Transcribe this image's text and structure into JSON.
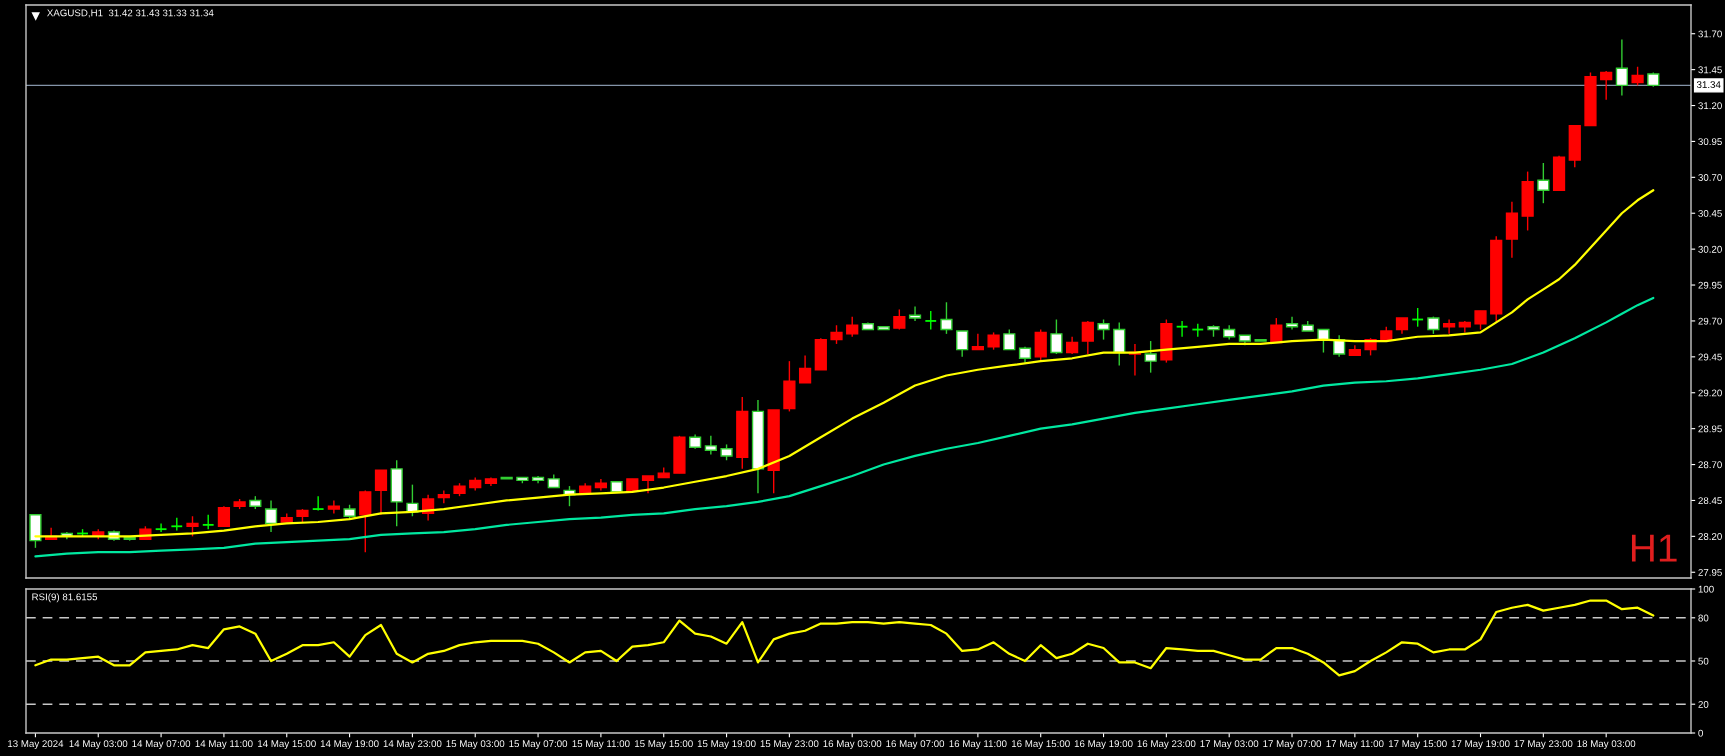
{
  "chart_data": [
    {
      "type": "candlestick",
      "title": "XAGUSD,H1  31.42 31.43 31.33 31.34",
      "x": [
        "2024-05-13T23:00",
        "2024-05-14T00:00",
        "2024-05-14T01:00",
        "2024-05-14T02:00",
        "2024-05-14T03:00",
        "2024-05-14T04:00",
        "2024-05-14T05:00",
        "2024-05-14T06:00",
        "2024-05-14T07:00",
        "2024-05-14T08:00",
        "2024-05-14T09:00",
        "2024-05-14T10:00",
        "2024-05-14T11:00",
        "2024-05-14T12:00",
        "2024-05-14T13:00",
        "2024-05-14T14:00",
        "2024-05-14T15:00",
        "2024-05-14T16:00",
        "2024-05-14T17:00",
        "2024-05-14T18:00",
        "2024-05-14T19:00",
        "2024-05-14T20:00",
        "2024-05-14T21:00",
        "2024-05-14T22:00",
        "2024-05-14T23:00",
        "2024-05-15T00:00",
        "2024-05-15T01:00",
        "2024-05-15T02:00",
        "2024-05-15T03:00",
        "2024-05-15T04:00",
        "2024-05-15T05:00",
        "2024-05-15T06:00",
        "2024-05-15T07:00",
        "2024-05-15T08:00",
        "2024-05-15T09:00",
        "2024-05-15T10:00",
        "2024-05-15T11:00",
        "2024-05-15T12:00",
        "2024-05-15T13:00",
        "2024-05-15T14:00",
        "2024-05-15T15:00",
        "2024-05-15T16:00",
        "2024-05-15T17:00",
        "2024-05-15T18:00",
        "2024-05-15T19:00",
        "2024-05-15T20:00",
        "2024-05-15T21:00",
        "2024-05-15T22:00",
        "2024-05-15T23:00",
        "2024-05-16T00:00",
        "2024-05-16T01:00",
        "2024-05-16T02:00",
        "2024-05-16T03:00",
        "2024-05-16T04:00",
        "2024-05-16T05:00",
        "2024-05-16T06:00",
        "2024-05-16T07:00",
        "2024-05-16T08:00",
        "2024-05-16T09:00",
        "2024-05-16T10:00",
        "2024-05-16T11:00",
        "2024-05-16T12:00",
        "2024-05-16T13:00",
        "2024-05-16T14:00",
        "2024-05-16T15:00",
        "2024-05-16T16:00",
        "2024-05-16T17:00",
        "2024-05-16T18:00",
        "2024-05-16T19:00",
        "2024-05-16T20:00",
        "2024-05-16T21:00",
        "2024-05-16T22:00",
        "2024-05-16T23:00",
        "2024-05-17T00:00",
        "2024-05-17T01:00",
        "2024-05-17T02:00",
        "2024-05-17T03:00",
        "2024-05-17T04:00",
        "2024-05-17T05:00",
        "2024-05-17T06:00",
        "2024-05-17T07:00",
        "2024-05-17T08:00",
        "2024-05-17T09:00",
        "2024-05-17T10:00",
        "2024-05-17T11:00",
        "2024-05-17T12:00",
        "2024-05-17T13:00",
        "2024-05-17T14:00",
        "2024-05-17T15:00",
        "2024-05-17T16:00",
        "2024-05-17T17:00",
        "2024-05-17T18:00",
        "2024-05-17T19:00",
        "2024-05-17T20:00",
        "2024-05-17T21:00",
        "2024-05-17T22:00",
        "2024-05-17T23:00",
        "2024-05-18T00:00",
        "2024-05-18T01:00",
        "2024-05-18T02:00",
        "2024-05-18T03:00",
        "2024-05-18T04:00",
        "2024-05-18T05:00",
        "2024-05-18T06:00"
      ],
      "ohlc": [
        [
          28.35,
          28.35,
          28.12,
          28.17
        ],
        [
          28.18,
          28.26,
          28.18,
          28.2
        ],
        [
          28.22,
          28.23,
          28.18,
          28.2
        ],
        [
          28.22,
          28.25,
          28.2,
          28.22
        ],
        [
          28.2,
          28.25,
          28.18,
          28.23
        ],
        [
          28.23,
          28.24,
          28.17,
          28.18
        ],
        [
          28.19,
          28.19,
          28.17,
          28.18
        ],
        [
          28.18,
          28.27,
          28.18,
          28.25
        ],
        [
          28.25,
          28.29,
          28.23,
          28.25
        ],
        [
          28.27,
          28.33,
          28.24,
          28.27
        ],
        [
          28.27,
          28.34,
          28.2,
          28.29
        ],
        [
          28.28,
          28.35,
          28.25,
          28.28
        ],
        [
          28.27,
          28.41,
          28.27,
          28.4
        ],
        [
          28.41,
          28.46,
          28.39,
          28.44
        ],
        [
          28.45,
          28.48,
          28.39,
          28.41
        ],
        [
          28.39,
          28.45,
          28.23,
          28.29
        ],
        [
          28.3,
          28.36,
          28.3,
          28.33
        ],
        [
          28.34,
          28.39,
          28.3,
          28.38
        ],
        [
          28.39,
          28.48,
          28.38,
          28.39
        ],
        [
          28.39,
          28.45,
          28.36,
          28.41
        ],
        [
          28.39,
          28.42,
          28.32,
          28.34
        ],
        [
          28.35,
          28.52,
          28.09,
          28.51
        ],
        [
          28.52,
          28.66,
          28.35,
          28.66
        ],
        [
          28.67,
          28.73,
          28.27,
          28.44
        ],
        [
          28.43,
          28.56,
          28.34,
          28.37
        ],
        [
          28.36,
          28.49,
          28.31,
          28.46
        ],
        [
          28.47,
          28.52,
          28.43,
          28.49
        ],
        [
          28.5,
          28.57,
          28.48,
          28.55
        ],
        [
          28.54,
          28.61,
          28.52,
          28.59
        ],
        [
          28.57,
          28.61,
          28.55,
          28.6
        ],
        [
          28.61,
          28.61,
          28.6,
          28.6
        ],
        [
          28.61,
          28.61,
          28.57,
          28.59
        ],
        [
          28.61,
          28.62,
          28.57,
          28.59
        ],
        [
          28.6,
          28.63,
          28.54,
          28.54
        ],
        [
          28.52,
          28.55,
          28.41,
          28.49
        ],
        [
          28.5,
          28.57,
          28.5,
          28.55
        ],
        [
          28.54,
          28.6,
          28.52,
          28.57
        ],
        [
          28.58,
          28.58,
          28.51,
          28.51
        ],
        [
          28.52,
          28.6,
          28.51,
          28.6
        ],
        [
          28.59,
          28.62,
          28.5,
          28.62
        ],
        [
          28.61,
          28.68,
          28.61,
          28.64
        ],
        [
          28.64,
          28.9,
          28.64,
          28.89
        ],
        [
          28.89,
          28.91,
          28.81,
          28.82
        ],
        [
          28.83,
          28.9,
          28.77,
          28.8
        ],
        [
          28.81,
          28.84,
          28.73,
          28.76
        ],
        [
          28.75,
          29.17,
          28.67,
          29.07
        ],
        [
          29.07,
          29.15,
          28.5,
          28.67
        ],
        [
          28.66,
          29.08,
          28.5,
          29.08
        ],
        [
          29.09,
          29.42,
          29.07,
          29.28
        ],
        [
          29.27,
          29.46,
          29.27,
          29.37
        ],
        [
          29.36,
          29.58,
          29.36,
          29.57
        ],
        [
          29.57,
          29.67,
          29.54,
          29.62
        ],
        [
          29.61,
          29.73,
          29.59,
          29.67
        ],
        [
          29.68,
          29.69,
          29.64,
          29.64
        ],
        [
          29.66,
          29.66,
          29.64,
          29.64
        ],
        [
          29.65,
          29.78,
          29.64,
          29.73
        ],
        [
          29.74,
          29.8,
          29.7,
          29.72
        ],
        [
          29.7,
          29.77,
          29.64,
          29.7
        ],
        [
          29.71,
          29.83,
          29.61,
          29.64
        ],
        [
          29.63,
          29.63,
          29.45,
          29.5
        ],
        [
          29.5,
          29.61,
          29.5,
          29.52
        ],
        [
          29.52,
          29.62,
          29.5,
          29.6
        ],
        [
          29.61,
          29.64,
          29.5,
          29.5
        ],
        [
          29.51,
          29.52,
          29.41,
          29.44
        ],
        [
          29.45,
          29.64,
          29.42,
          29.62
        ],
        [
          29.61,
          29.71,
          29.47,
          29.48
        ],
        [
          29.48,
          29.59,
          29.47,
          29.55
        ],
        [
          29.56,
          29.7,
          29.47,
          29.69
        ],
        [
          29.68,
          29.71,
          29.57,
          29.64
        ],
        [
          29.64,
          29.69,
          29.39,
          29.48
        ],
        [
          29.47,
          29.54,
          29.32,
          29.48
        ],
        [
          29.47,
          29.56,
          29.34,
          29.42
        ],
        [
          29.43,
          29.71,
          29.41,
          29.68
        ],
        [
          29.66,
          29.7,
          29.59,
          29.66
        ],
        [
          29.64,
          29.68,
          29.59,
          29.64
        ],
        [
          29.66,
          29.67,
          29.59,
          29.64
        ],
        [
          29.64,
          29.67,
          29.57,
          29.59
        ],
        [
          29.6,
          29.6,
          29.53,
          29.56
        ],
        [
          29.57,
          29.57,
          29.56,
          29.56
        ],
        [
          29.55,
          29.72,
          29.55,
          29.67
        ],
        [
          29.68,
          29.73,
          29.64,
          29.66
        ],
        [
          29.67,
          29.7,
          29.63,
          29.63
        ],
        [
          29.64,
          29.64,
          29.48,
          29.57
        ],
        [
          29.57,
          29.6,
          29.45,
          29.47
        ],
        [
          29.46,
          29.53,
          29.46,
          29.5
        ],
        [
          29.5,
          29.58,
          29.46,
          29.57
        ],
        [
          29.57,
          29.66,
          29.57,
          29.63
        ],
        [
          29.64,
          29.72,
          29.61,
          29.72
        ],
        [
          29.71,
          29.79,
          29.66,
          29.71
        ],
        [
          29.72,
          29.73,
          29.61,
          29.64
        ],
        [
          29.66,
          29.71,
          29.61,
          29.68
        ],
        [
          29.66,
          29.7,
          29.62,
          29.69
        ],
        [
          29.68,
          29.77,
          29.64,
          29.77
        ],
        [
          29.75,
          30.29,
          29.69,
          30.26
        ],
        [
          30.27,
          30.53,
          30.14,
          30.45
        ],
        [
          30.43,
          30.74,
          30.33,
          30.67
        ],
        [
          30.68,
          30.8,
          30.52,
          30.61
        ],
        [
          30.61,
          30.85,
          30.61,
          30.84
        ],
        [
          30.82,
          31.06,
          30.77,
          31.06
        ],
        [
          31.06,
          31.43,
          31.06,
          31.4
        ],
        [
          31.38,
          31.44,
          31.24,
          31.43
        ],
        [
          31.46,
          31.66,
          31.27,
          31.34
        ],
        [
          31.36,
          31.47,
          31.34,
          31.41
        ],
        [
          31.42,
          31.43,
          31.33,
          31.34
        ]
      ],
      "colors": [
        "#ffffff",
        "#ff0000",
        "#ffffff",
        "#00ff00",
        "#ff0000",
        "#ffffff",
        "#ffffff",
        "#ff0000",
        "#00ff00",
        "#00ff00",
        "#ff0000",
        "#00ff00",
        "#ff0000",
        "#ff0000",
        "#ffffff",
        "#ffffff",
        "#ff0000",
        "#ff0000",
        "#00ff00",
        "#ff0000",
        "#ffffff",
        "#ff0000",
        "#ff0000",
        "#ffffff",
        "#ffffff",
        "#ff0000",
        "#ff0000",
        "#ff0000",
        "#ff0000",
        "#ff0000",
        "#ffffff",
        "#ffffff",
        "#ffffff",
        "#ffffff",
        "#ffffff",
        "#ff0000",
        "#ff0000",
        "#ffffff",
        "#ff0000",
        "#ff0000",
        "#ff0000",
        "#ff0000",
        "#ffffff",
        "#ffffff",
        "#ffffff",
        "#ff0000",
        "#ffffff",
        "#ff0000",
        "#ff0000",
        "#ff0000",
        "#ff0000",
        "#ff0000",
        "#ff0000",
        "#ffffff",
        "#ffffff",
        "#ff0000",
        "#ffffff",
        "#00ff00",
        "#ffffff",
        "#ffffff",
        "#ff0000",
        "#ff0000",
        "#ffffff",
        "#ffffff",
        "#ff0000",
        "#ffffff",
        "#ff0000",
        "#ff0000",
        "#ffffff",
        "#ffffff",
        "#ff0000",
        "#ffffff",
        "#ff0000",
        "#00ff00",
        "#00ff00",
        "#ffffff",
        "#ffffff",
        "#ffffff",
        "#ffffff",
        "#ff0000",
        "#ffffff",
        "#ffffff",
        "#ffffff",
        "#ffffff",
        "#ff0000",
        "#ff0000",
        "#ff0000",
        "#ff0000",
        "#00ff00",
        "#ffffff",
        "#ff0000",
        "#ff0000",
        "#ff0000",
        "#ff0000",
        "#ff0000",
        "#ff0000",
        "#ffffff",
        "#ff0000",
        "#ff0000",
        "#ff0000",
        "#ff0000",
        "#ffffff",
        "#ff0000",
        "#ffffff"
      ],
      "series": [
        {
          "type": "line",
          "color": "#ffff00",
          "x": [
            "2024-05-13T23:00",
            "2024-05-14T01:00",
            "2024-05-14T03:00",
            "2024-05-14T05:00",
            "2024-05-14T07:00",
            "2024-05-14T09:00",
            "2024-05-14T11:00",
            "2024-05-14T13:00",
            "2024-05-14T15:00",
            "2024-05-14T17:00",
            "2024-05-14T19:00",
            "2024-05-14T21:00",
            "2024-05-14T23:00",
            "2024-05-15T01:00",
            "2024-05-15T03:00",
            "2024-05-15T05:00",
            "2024-05-15T07:00",
            "2024-05-15T09:00",
            "2024-05-15T11:00",
            "2024-05-15T13:00",
            "2024-05-15T15:00",
            "2024-05-15T17:00",
            "2024-05-15T19:00",
            "2024-05-15T21:00",
            "2024-05-15T23:00",
            "2024-05-16T01:00",
            "2024-05-16T03:00",
            "2024-05-16T05:00",
            "2024-05-16T07:00",
            "2024-05-16T09:00",
            "2024-05-16T11:00",
            "2024-05-16T13:00",
            "2024-05-16T15:00",
            "2024-05-16T17:00",
            "2024-05-16T19:00",
            "2024-05-16T21:00",
            "2024-05-16T23:00",
            "2024-05-17T01:00",
            "2024-05-17T03:00",
            "2024-05-17T05:00",
            "2024-05-17T07:00",
            "2024-05-17T09:00",
            "2024-05-17T11:00",
            "2024-05-17T13:00",
            "2024-05-17T15:00",
            "2024-05-17T17:00",
            "2024-05-17T19:00",
            "2024-05-17T20:00",
            "2024-05-17T21:00",
            "2024-05-17T22:00",
            "2024-05-17T23:00",
            "2024-05-18T00:00",
            "2024-05-18T01:00",
            "2024-05-18T02:00",
            "2024-05-18T03:00",
            "2024-05-18T04:00",
            "2024-05-18T05:00",
            "2024-05-18T06:00"
          ],
          "values": [
            28.2,
            28.2,
            28.2,
            28.2,
            28.21,
            28.22,
            28.24,
            28.27,
            28.29,
            28.3,
            28.32,
            28.36,
            28.37,
            28.39,
            28.42,
            28.45,
            28.47,
            28.49,
            28.5,
            28.51,
            28.54,
            28.58,
            28.62,
            28.67,
            28.76,
            28.89,
            29.02,
            29.13,
            29.25,
            29.32,
            29.36,
            29.39,
            29.42,
            29.44,
            29.48,
            29.48,
            29.5,
            29.52,
            29.54,
            29.54,
            29.56,
            29.57,
            29.56,
            29.56,
            29.59,
            29.6,
            29.62,
            29.69,
            29.76,
            29.85,
            29.92,
            29.99,
            30.09,
            30.21,
            30.33,
            30.45,
            30.54,
            30.61
          ]
        },
        {
          "type": "line",
          "color": "#00e8a0",
          "x": [
            "2024-05-13T23:00",
            "2024-05-14T01:00",
            "2024-05-14T03:00",
            "2024-05-14T05:00",
            "2024-05-14T07:00",
            "2024-05-14T09:00",
            "2024-05-14T11:00",
            "2024-05-14T13:00",
            "2024-05-14T15:00",
            "2024-05-14T17:00",
            "2024-05-14T19:00",
            "2024-05-14T21:00",
            "2024-05-14T23:00",
            "2024-05-15T01:00",
            "2024-05-15T03:00",
            "2024-05-15T05:00",
            "2024-05-15T07:00",
            "2024-05-15T09:00",
            "2024-05-15T11:00",
            "2024-05-15T13:00",
            "2024-05-15T15:00",
            "2024-05-15T17:00",
            "2024-05-15T19:00",
            "2024-05-15T21:00",
            "2024-05-15T23:00",
            "2024-05-16T01:00",
            "2024-05-16T03:00",
            "2024-05-16T05:00",
            "2024-05-16T07:00",
            "2024-05-16T09:00",
            "2024-05-16T11:00",
            "2024-05-16T13:00",
            "2024-05-16T15:00",
            "2024-05-16T17:00",
            "2024-05-16T19:00",
            "2024-05-16T21:00",
            "2024-05-16T23:00",
            "2024-05-17T01:00",
            "2024-05-17T03:00",
            "2024-05-17T05:00",
            "2024-05-17T07:00",
            "2024-05-17T09:00",
            "2024-05-17T11:00",
            "2024-05-17T13:00",
            "2024-05-17T15:00",
            "2024-05-17T17:00",
            "2024-05-17T19:00",
            "2024-05-17T21:00",
            "2024-05-17T23:00",
            "2024-05-18T01:00",
            "2024-05-18T03:00",
            "2024-05-18T04:00",
            "2024-05-18T05:00",
            "2024-05-18T06:00"
          ],
          "values": [
            28.06,
            28.08,
            28.09,
            28.09,
            28.1,
            28.11,
            28.12,
            28.15,
            28.16,
            28.17,
            28.18,
            28.21,
            28.22,
            28.23,
            28.25,
            28.28,
            28.3,
            28.32,
            28.33,
            28.35,
            28.36,
            28.39,
            28.41,
            28.44,
            28.48,
            28.55,
            28.62,
            28.7,
            28.76,
            28.81,
            28.85,
            28.9,
            28.95,
            28.98,
            29.02,
            29.06,
            29.09,
            29.12,
            29.15,
            29.18,
            29.21,
            29.25,
            29.27,
            29.28,
            29.3,
            29.33,
            29.36,
            29.4,
            29.48,
            29.58,
            29.69,
            29.75,
            29.81,
            29.86
          ]
        }
      ],
      "xlim": [
        "2024-05-13T22:24",
        "2024-05-18T08:24"
      ],
      "ylim": [
        27.91,
        31.9
      ],
      "yticks": [
        27.95,
        {
          "value": 28.2,
          "label": "28.20"
        },
        28.45,
        {
          "value": 28.7,
          "label": "28.70"
        },
        28.95,
        {
          "value": 29.2,
          "label": "29.20"
        },
        29.45,
        {
          "value": 29.7,
          "label": "29.70"
        },
        29.95,
        {
          "value": 30.2,
          "label": "30.20"
        },
        30.45,
        {
          "value": 30.7,
          "label": "30.70"
        },
        30.95,
        {
          "value": 31.2,
          "label": "31.20"
        },
        31.45,
        {
          "value": 31.7,
          "label": "31.70"
        }
      ],
      "ref_lines": [
        {
          "axis": "y",
          "value": 31.34,
          "label": "31.34",
          "color": "#8494a8"
        }
      ],
      "annotations": [
        "H1"
      ],
      "tick_labels": "y"
    },
    {
      "type": "line",
      "title": "RSI(9) 81.6155",
      "x": [
        "2024-05-13T23:00",
        "2024-05-14T00:00",
        "2024-05-14T01:00",
        "2024-05-14T02:00",
        "2024-05-14T03:00",
        "2024-05-14T04:00",
        "2024-05-14T05:00",
        "2024-05-14T06:00",
        "2024-05-14T07:00",
        "2024-05-14T08:00",
        "2024-05-14T09:00",
        "2024-05-14T10:00",
        "2024-05-14T11:00",
        "2024-05-14T12:00",
        "2024-05-14T13:00",
        "2024-05-14T14:00",
        "2024-05-14T15:00",
        "2024-05-14T16:00",
        "2024-05-14T17:00",
        "2024-05-14T18:00",
        "2024-05-14T19:00",
        "2024-05-14T20:00",
        "2024-05-14T21:00",
        "2024-05-14T22:00",
        "2024-05-14T23:00",
        "2024-05-15T00:00",
        "2024-05-15T01:00",
        "2024-05-15T02:00",
        "2024-05-15T03:00",
        "2024-05-15T04:00",
        "2024-05-15T05:00",
        "2024-05-15T06:00",
        "2024-05-15T07:00",
        "2024-05-15T08:00",
        "2024-05-15T09:00",
        "2024-05-15T10:00",
        "2024-05-15T11:00",
        "2024-05-15T12:00",
        "2024-05-15T13:00",
        "2024-05-15T14:00",
        "2024-05-15T15:00",
        "2024-05-15T16:00",
        "2024-05-15T17:00",
        "2024-05-15T18:00",
        "2024-05-15T19:00",
        "2024-05-15T20:00",
        "2024-05-15T21:00",
        "2024-05-15T22:00",
        "2024-05-15T23:00",
        "2024-05-16T00:00",
        "2024-05-16T01:00",
        "2024-05-16T02:00",
        "2024-05-16T03:00",
        "2024-05-16T04:00",
        "2024-05-16T05:00",
        "2024-05-16T06:00",
        "2024-05-16T07:00",
        "2024-05-16T08:00",
        "2024-05-16T09:00",
        "2024-05-16T10:00",
        "2024-05-16T11:00",
        "2024-05-16T12:00",
        "2024-05-16T13:00",
        "2024-05-16T14:00",
        "2024-05-16T15:00",
        "2024-05-16T16:00",
        "2024-05-16T17:00",
        "2024-05-16T18:00",
        "2024-05-16T19:00",
        "2024-05-16T20:00",
        "2024-05-16T21:00",
        "2024-05-16T22:00",
        "2024-05-16T23:00",
        "2024-05-17T00:00",
        "2024-05-17T01:00",
        "2024-05-17T02:00",
        "2024-05-17T03:00",
        "2024-05-17T04:00",
        "2024-05-17T05:00",
        "2024-05-17T06:00",
        "2024-05-17T07:00",
        "2024-05-17T08:00",
        "2024-05-17T09:00",
        "2024-05-17T10:00",
        "2024-05-17T11:00",
        "2024-05-17T12:00",
        "2024-05-17T13:00",
        "2024-05-17T14:00",
        "2024-05-17T15:00",
        "2024-05-17T16:00",
        "2024-05-17T17:00",
        "2024-05-17T18:00",
        "2024-05-17T19:00",
        "2024-05-17T20:00",
        "2024-05-17T21:00",
        "2024-05-17T22:00",
        "2024-05-17T23:00",
        "2024-05-18T00:00",
        "2024-05-18T01:00",
        "2024-05-18T02:00",
        "2024-05-18T03:00",
        "2024-05-18T04:00",
        "2024-05-18T05:00",
        "2024-05-18T06:00"
      ],
      "series": [
        {
          "color": "#ffff00",
          "values": [
            47,
            51,
            51,
            52,
            53,
            47,
            47,
            56,
            57,
            58,
            61,
            59,
            72,
            74,
            69,
            50,
            55,
            61,
            61,
            63,
            53,
            68,
            75,
            55,
            49,
            55,
            57,
            61,
            63,
            64,
            64,
            64,
            62,
            56,
            49,
            56,
            57,
            50,
            60,
            61,
            63,
            78,
            69,
            67,
            62,
            77,
            49,
            65,
            69,
            71,
            76,
            76,
            77,
            77,
            76,
            77,
            76,
            75,
            69,
            57,
            58,
            63,
            55,
            50,
            61,
            52,
            55,
            62,
            59,
            49,
            49,
            45,
            59,
            58,
            57,
            57,
            54,
            51,
            51,
            59,
            59,
            55,
            49,
            40,
            43,
            50,
            56,
            63,
            62,
            56,
            58,
            58,
            65,
            84,
            87,
            89,
            85,
            87,
            89,
            92,
            92,
            86,
            87,
            81.6155
          ]
        }
      ],
      "xlim": [
        "2024-05-13T22:24",
        "2024-05-18T08:24"
      ],
      "ylim": [
        0,
        100
      ],
      "yticks": [
        0,
        20,
        50,
        80,
        100
      ],
      "xticks": [
        {
          "value": "2024-05-13T23:00",
          "label": "13 May 2024"
        },
        {
          "value": "2024-05-14T03:00",
          "label": "14 May 03:00"
        },
        {
          "value": "2024-05-14T07:00",
          "label": "14 May 07:00"
        },
        {
          "value": "2024-05-14T11:00",
          "label": "14 May 11:00"
        },
        {
          "value": "2024-05-14T15:00",
          "label": "14 May 15:00"
        },
        {
          "value": "2024-05-14T19:00",
          "label": "14 May 19:00"
        },
        {
          "value": "2024-05-14T23:00",
          "label": "14 May 23:00"
        },
        {
          "value": "2024-05-15T03:00",
          "label": "15 May 03:00"
        },
        {
          "value": "2024-05-15T07:00",
          "label": "15 May 07:00"
        },
        {
          "value": "2024-05-15T11:00",
          "label": "15 May 11:00"
        },
        {
          "value": "2024-05-15T15:00",
          "label": "15 May 15:00"
        },
        {
          "value": "2024-05-15T19:00",
          "label": "15 May 19:00"
        },
        {
          "value": "2024-05-15T23:00",
          "label": "15 May 23:00"
        },
        {
          "value": "2024-05-16T03:00",
          "label": "16 May 03:00"
        },
        {
          "value": "2024-05-16T07:00",
          "label": "16 May 07:00"
        },
        {
          "value": "2024-05-16T11:00",
          "label": "16 May 11:00"
        },
        {
          "value": "2024-05-16T15:00",
          "label": "16 May 15:00"
        },
        {
          "value": "2024-05-16T19:00",
          "label": "16 May 19:00"
        },
        {
          "value": "2024-05-16T23:00",
          "label": "16 May 23:00"
        },
        {
          "value": "2024-05-17T03:00",
          "label": "17 May 03:00"
        },
        {
          "value": "2024-05-17T07:00",
          "label": "17 May 07:00"
        },
        {
          "value": "2024-05-17T11:00",
          "label": "17 May 11:00"
        },
        {
          "value": "2024-05-17T15:00",
          "label": "17 May 15:00"
        },
        {
          "value": "2024-05-17T19:00",
          "label": "17 May 19:00"
        },
        {
          "value": "2024-05-17T23:00",
          "label": "17 May 23:00"
        },
        {
          "value": "2024-05-18T03:00",
          "label": "18 May 03:00"
        }
      ],
      "ref_lines": [
        {
          "axis": "y",
          "value": 80,
          "color": "#c8c8c8",
          "line_style": "dashed"
        },
        {
          "axis": "y",
          "value": 50,
          "color": "#c8c8c8",
          "line_style": "dashed"
        },
        {
          "axis": "y",
          "value": 20,
          "color": "#c8c8c8",
          "line_style": "dashed"
        }
      ]
    }
  ]
}
